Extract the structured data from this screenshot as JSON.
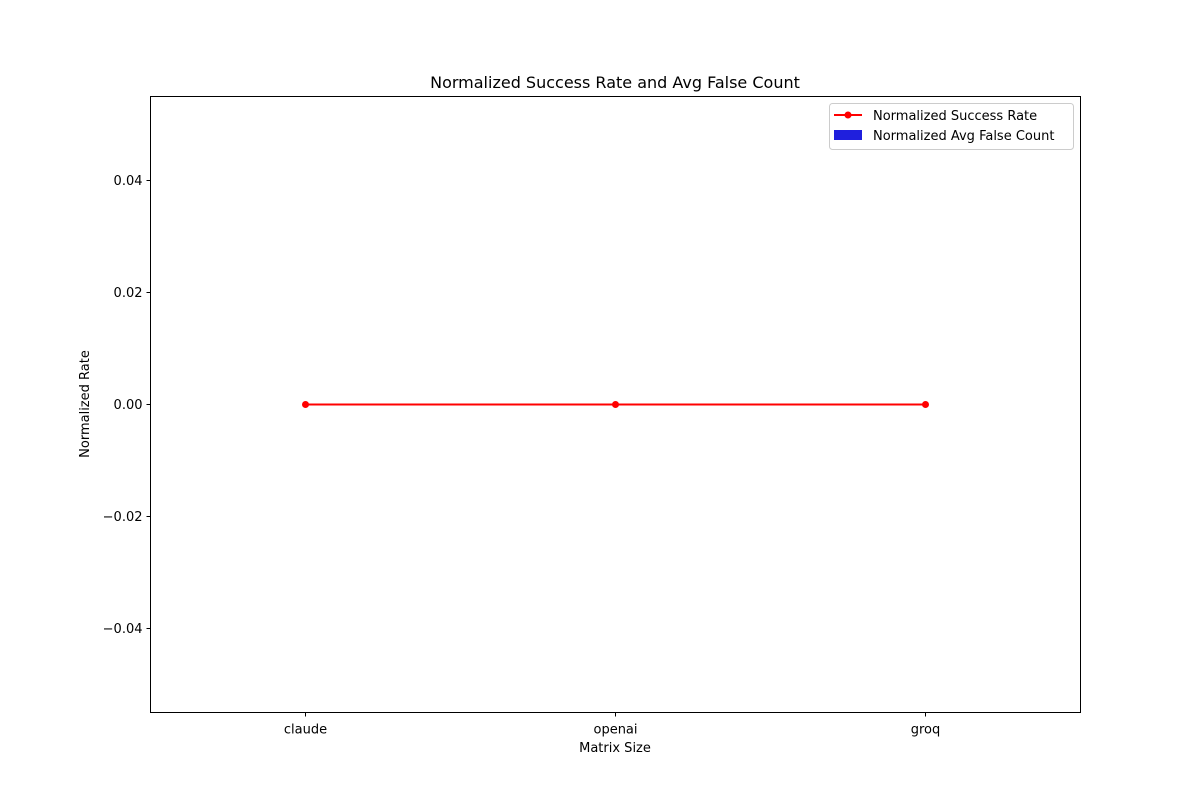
{
  "chart_data": {
    "type": "line",
    "title": "Normalized Success Rate and Avg False Count",
    "xlabel": "Matrix Size",
    "ylabel": "Normalized Rate",
    "categories": [
      "claude",
      "openai",
      "groq"
    ],
    "ylim": [
      -0.055,
      0.055
    ],
    "yticks": [
      -0.04,
      -0.02,
      0.0,
      0.02,
      0.04
    ],
    "ytick_labels": [
      "−0.04",
      "−0.02",
      "0.00",
      "0.02",
      "0.04"
    ],
    "series": [
      {
        "name": "Normalized Success Rate",
        "kind": "line",
        "marker": "circle",
        "color": "#ff0000",
        "values": [
          0,
          0,
          0
        ]
      },
      {
        "name": "Normalized Avg False Count",
        "kind": "bar",
        "color": "#1f1fdd",
        "values": [
          0,
          0,
          0
        ]
      }
    ],
    "legend_position": "top-right",
    "grid": false
  }
}
